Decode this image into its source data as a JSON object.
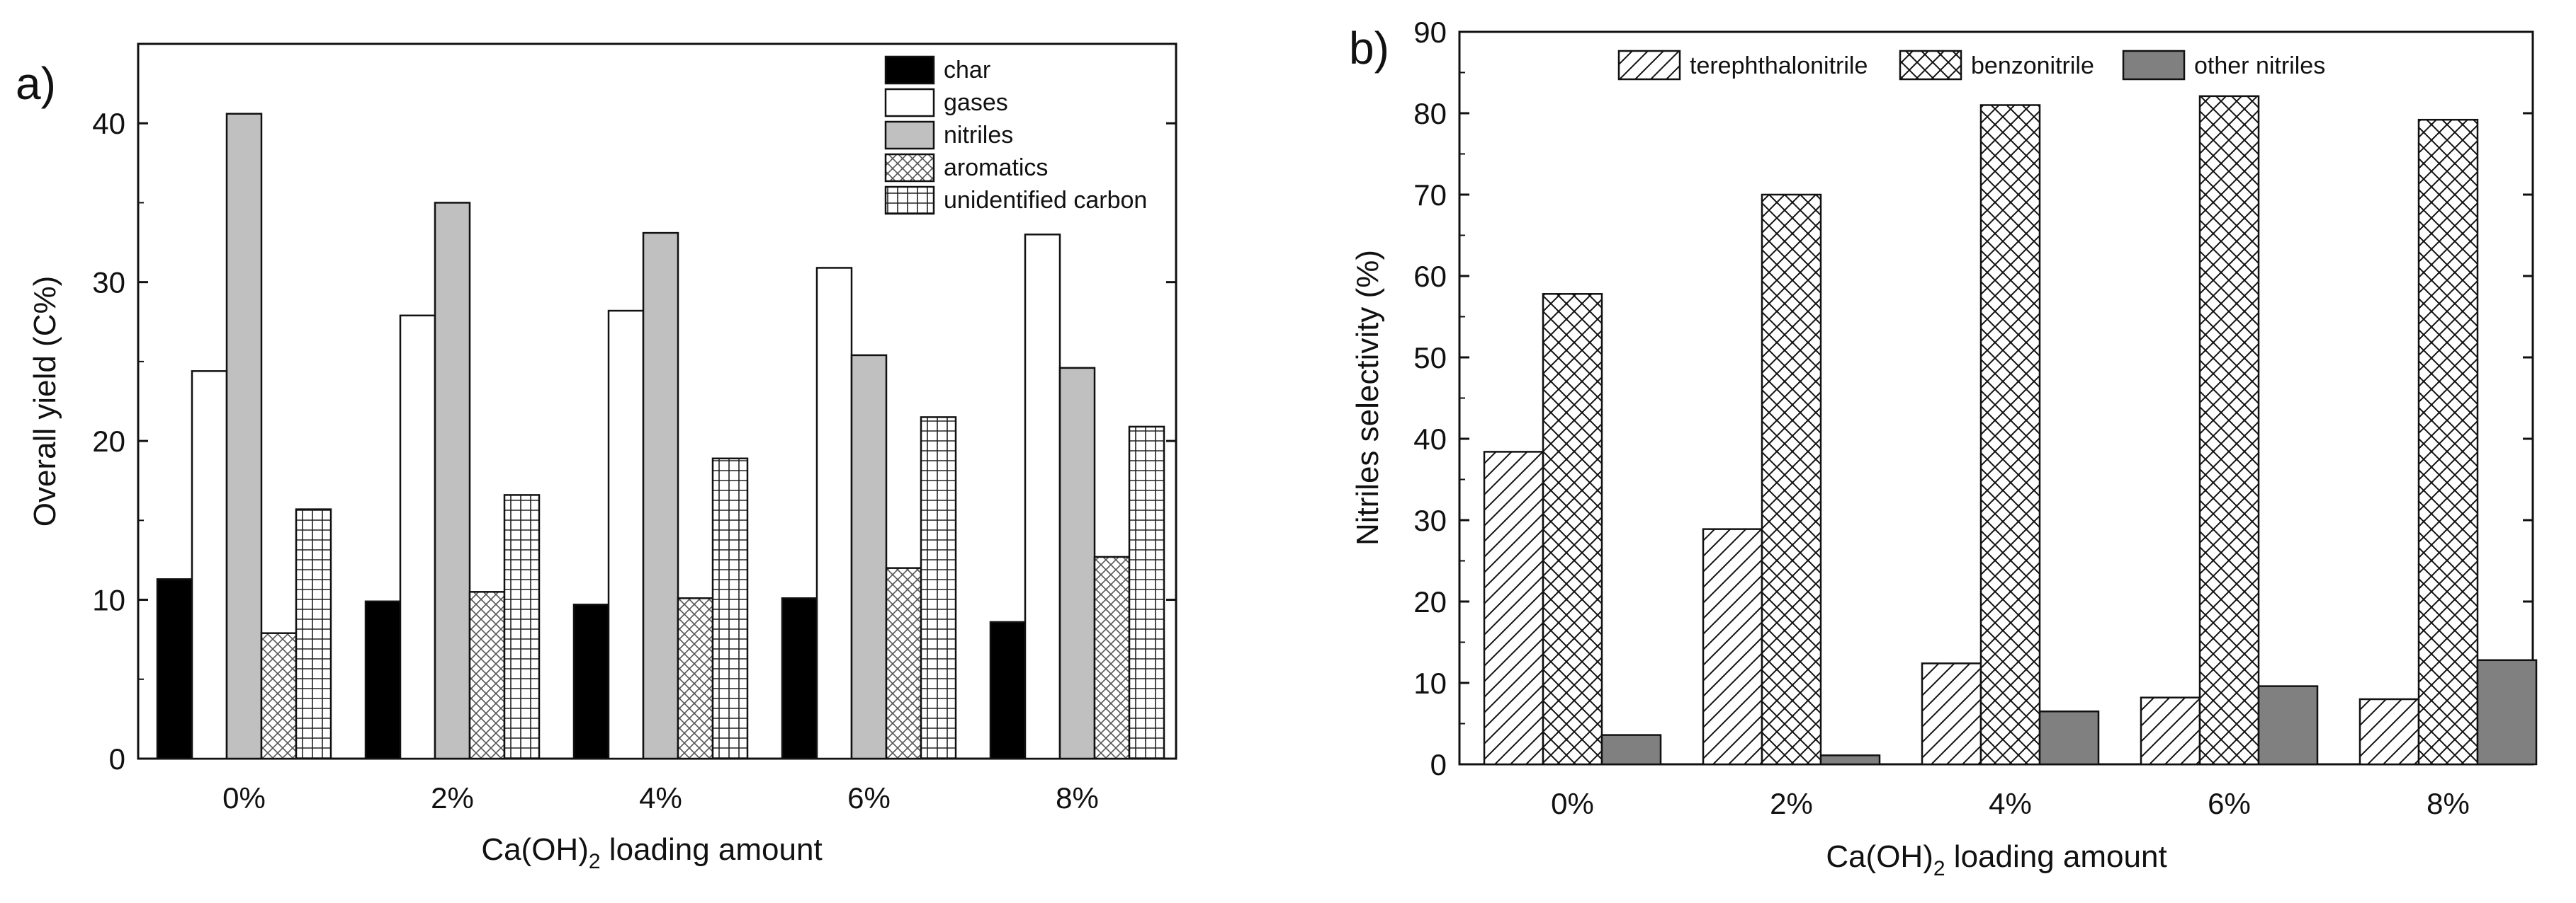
{
  "chart_data": [
    {
      "panel_label": "a)",
      "type": "bar",
      "title": "",
      "xlabel_main": "Ca(OH)",
      "xlabel_sub": "2",
      "xlabel_tail": " loading amount",
      "ylabel": "Overall yield (C%)",
      "ylim": [
        0,
        45
      ],
      "yticks": [
        "0",
        "10",
        "20",
        "30",
        "40"
      ],
      "categories": [
        "0%",
        "2%",
        "4%",
        "6%",
        "8%"
      ],
      "legend_position": "top-right",
      "series": [
        {
          "name": "char",
          "pattern": "black",
          "values": [
            11.3,
            9.9,
            9.7,
            10.1,
            8.6
          ]
        },
        {
          "name": "gases",
          "pattern": "white",
          "values": [
            24.4,
            27.9,
            28.2,
            30.9,
            33.0
          ]
        },
        {
          "name": "nitriles",
          "pattern": "grey",
          "values": [
            40.6,
            35.0,
            33.1,
            25.4,
            24.6
          ]
        },
        {
          "name": "aromatics",
          "pattern": "crosshatch",
          "values": [
            7.9,
            10.5,
            10.1,
            12.0,
            12.7
          ]
        },
        {
          "name": "unidentified carbon",
          "pattern": "grid",
          "values": [
            15.7,
            16.6,
            18.9,
            21.5,
            20.9
          ]
        }
      ]
    },
    {
      "panel_label": "b)",
      "type": "bar",
      "title": "",
      "xlabel_main": "Ca(OH)",
      "xlabel_sub": "2",
      "xlabel_tail": " loading amount",
      "ylabel": "Nitriles selectivity (%)",
      "ylim": [
        0,
        90
      ],
      "yticks": [
        "0",
        "10",
        "20",
        "30",
        "40",
        "50",
        "60",
        "70",
        "80",
        "90"
      ],
      "categories": [
        "0%",
        "2%",
        "4%",
        "6%",
        "8%"
      ],
      "legend_position": "top",
      "series": [
        {
          "name": "terephthalonitrile",
          "pattern": "diagonal",
          "values": [
            38.4,
            28.9,
            12.4,
            8.2,
            8.0
          ]
        },
        {
          "name": "benzonitrile",
          "pattern": "crosshatch-dense",
          "values": [
            57.8,
            70.0,
            81.0,
            82.1,
            79.2
          ]
        },
        {
          "name": "other nitriles",
          "pattern": "darkgrey",
          "values": [
            3.6,
            1.1,
            6.5,
            9.6,
            12.8
          ]
        }
      ]
    }
  ],
  "colors": {
    "grey": "#c0c0c0",
    "darkgrey": "#808080",
    "black": "#000000",
    "white": "#ffffff"
  }
}
